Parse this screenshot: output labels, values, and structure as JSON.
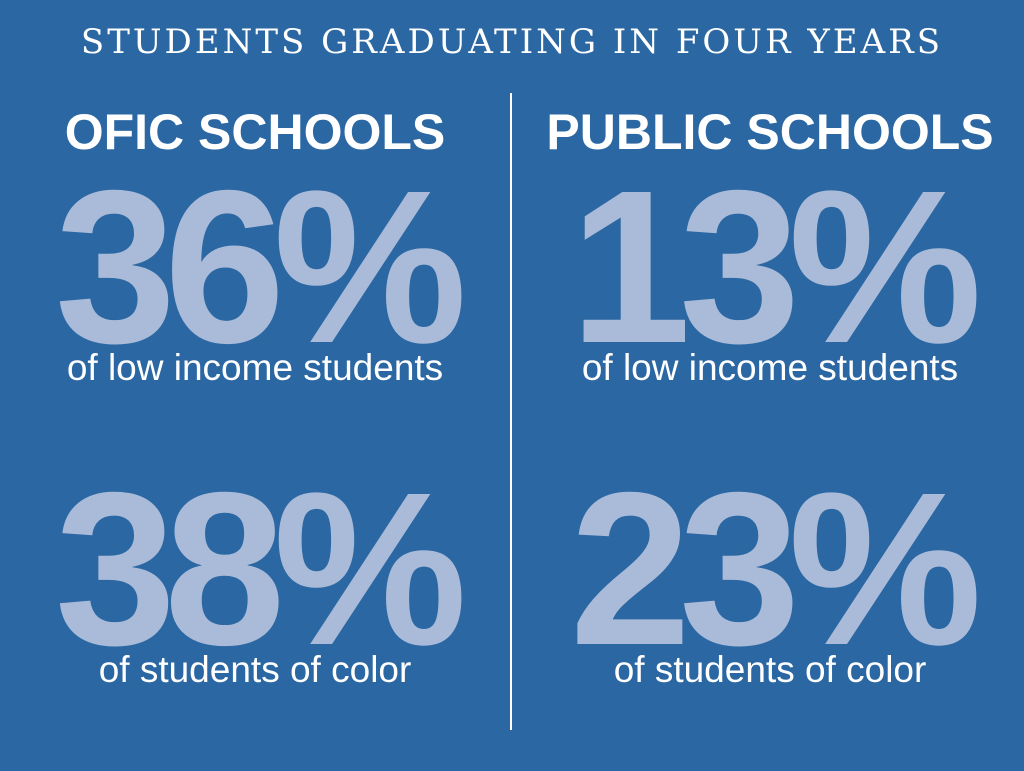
{
  "title": "STUDENTS GRADUATING IN FOUR YEARS",
  "colors": {
    "background": "#2b67a2",
    "text": "#ffffff",
    "stat": "#a9bbd9"
  },
  "columns": [
    {
      "heading": "OFIC SCHOOLS",
      "stats": [
        {
          "value": "36%",
          "label": "of low income students"
        },
        {
          "value": "38%",
          "label": "of students of color"
        }
      ]
    },
    {
      "heading": "PUBLIC SCHOOLS",
      "stats": [
        {
          "value": "13%",
          "label": "of low income students"
        },
        {
          "value": "23%",
          "label": "of students of color"
        }
      ]
    }
  ]
}
